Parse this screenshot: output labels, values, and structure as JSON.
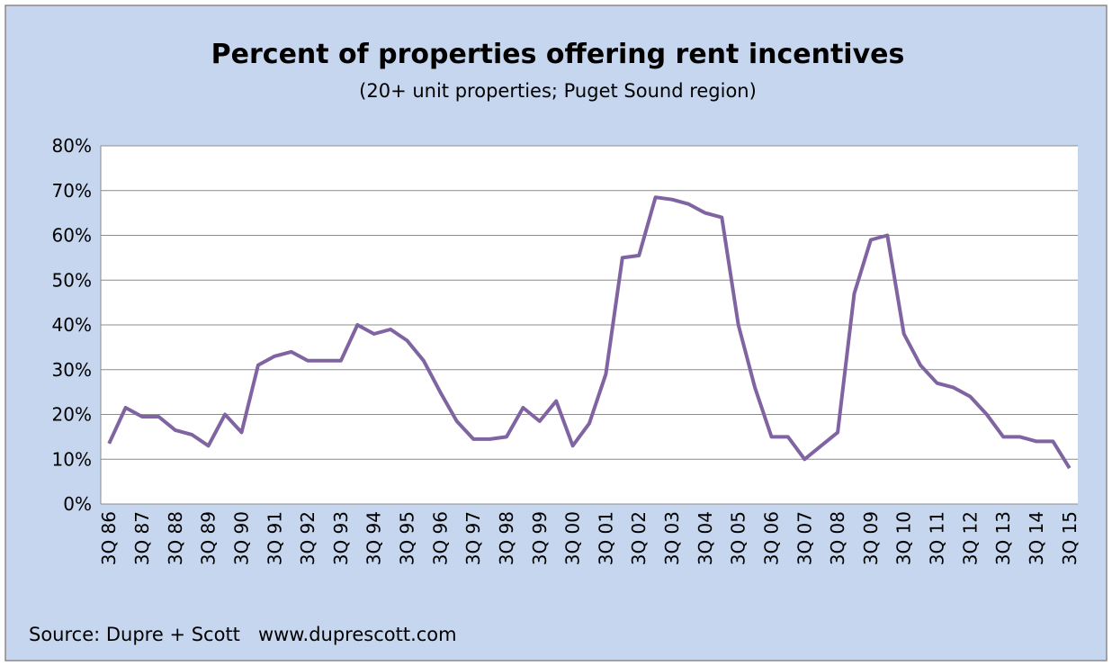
{
  "chart_data": {
    "type": "line",
    "title": "Percent of properties offering rent incentives",
    "subtitle": "(20+ unit properties; Puget Sound region)",
    "source": "Source: Dupre + Scott   www.duprescott.com",
    "categories": [
      "3Q 86",
      null,
      "3Q 87",
      null,
      "3Q 88",
      null,
      "3Q 89",
      null,
      "3Q 90",
      null,
      "3Q 91",
      null,
      "3Q 92",
      null,
      "3Q 93",
      null,
      "3Q 94",
      null,
      "3Q 95",
      null,
      "3Q 96",
      null,
      "3Q 97",
      null,
      "3Q 98",
      null,
      "3Q 99",
      null,
      "3Q 00",
      null,
      "3Q 01",
      null,
      "3Q 02",
      null,
      "3Q 03",
      null,
      "3Q 04",
      null,
      "3Q 05",
      null,
      "3Q 06",
      null,
      "3Q 07",
      null,
      "3Q 08",
      null,
      "3Q 09",
      null,
      "3Q 10",
      null,
      "3Q 11",
      null,
      "3Q 12",
      null,
      "3Q 13",
      null,
      "3Q 14",
      null,
      "3Q 15"
    ],
    "series": [
      {
        "name": "Percent of properties offering rent incentives",
        "color": "#8064a2",
        "values": [
          13.5,
          21.5,
          19.5,
          19.5,
          16.5,
          15.5,
          13,
          20,
          16,
          31,
          33,
          34,
          32,
          32,
          32,
          40,
          38,
          39,
          36.5,
          32,
          25,
          18.5,
          14.5,
          14.5,
          15,
          21.5,
          18.5,
          23,
          13,
          18,
          29,
          55,
          55.5,
          68.5,
          68,
          67,
          65,
          64,
          40,
          26,
          15,
          15,
          10,
          13,
          16,
          47,
          59,
          60,
          38,
          31,
          27,
          26,
          24,
          20,
          15,
          15,
          14,
          14,
          8
        ]
      }
    ],
    "ylim": [
      0,
      80
    ],
    "yticks": [
      {
        "value": 0,
        "label": "0%"
      },
      {
        "value": 10,
        "label": "10%"
      },
      {
        "value": 20,
        "label": "20%"
      },
      {
        "value": 30,
        "label": "30%"
      },
      {
        "value": 40,
        "label": "40%"
      },
      {
        "value": 50,
        "label": "50%"
      },
      {
        "value": 60,
        "label": "60%"
      },
      {
        "value": 70,
        "label": "70%"
      },
      {
        "value": 80,
        "label": "80%"
      }
    ],
    "grid": true
  }
}
